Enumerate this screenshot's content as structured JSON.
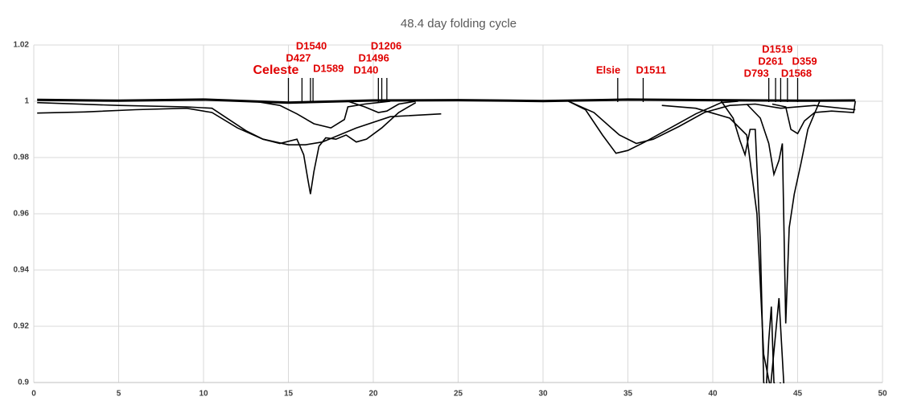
{
  "chart_data": {
    "type": "line",
    "title": "48.4 day folding cycle",
    "xlim": [
      0,
      50
    ],
    "xticks": [
      0,
      5,
      10,
      15,
      20,
      25,
      30,
      35,
      40,
      45,
      50
    ],
    "ylim": [
      0.9,
      1.02
    ],
    "yticks": [
      0.9,
      0.92,
      0.94,
      0.96,
      0.98,
      1,
      1.02
    ],
    "grid": true,
    "series": [
      {
        "color": "#000000",
        "x": [
          0.2,
          5,
          10,
          15,
          20,
          25,
          30,
          35,
          40,
          45,
          48.4
        ],
        "values": [
          1.0005,
          1.0002,
          1.0006,
          0.9995,
          1.0003,
          1.0004,
          1.0001,
          1.0006,
          1.0004,
          1.0002,
          1.0003
        ]
      },
      {
        "color": "#000000",
        "x": [
          0.2,
          3,
          6,
          9,
          10.5,
          12,
          13.5,
          15,
          16,
          17,
          19,
          21,
          24
        ],
        "values": [
          0.9958,
          0.9962,
          0.997,
          0.9975,
          0.996,
          0.9905,
          0.9865,
          0.9845,
          0.9845,
          0.9855,
          0.9905,
          0.9945,
          0.9955
        ]
      },
      {
        "color": "#000000",
        "x": [
          0.2,
          5,
          9,
          10.5,
          11.5,
          12.5,
          13.5,
          14.5,
          15.5,
          15.9,
          16.15,
          16.3,
          16.5,
          16.8,
          17.2,
          17.8,
          18.4,
          19,
          19.6,
          20.5,
          21.5,
          22.5
        ],
        "values": [
          0.9995,
          0.9985,
          0.998,
          0.9975,
          0.9935,
          0.9895,
          0.9865,
          0.985,
          0.9865,
          0.981,
          0.972,
          0.967,
          0.975,
          0.984,
          0.987,
          0.9865,
          0.988,
          0.9855,
          0.9865,
          0.9905,
          0.996,
          0.9995
        ]
      },
      {
        "color": "#000000",
        "x": [
          13,
          14.5,
          15.5,
          16.5,
          17.5,
          18.3,
          18.5,
          19.5,
          21
        ],
        "values": [
          1.0,
          0.9985,
          0.9955,
          0.992,
          0.9905,
          0.9935,
          0.998,
          0.999,
          1.0
        ]
      },
      {
        "color": "#000000",
        "x": [
          18.5,
          19.5,
          20.3,
          20.8,
          21.5,
          22.5
        ],
        "values": [
          1.0,
          0.998,
          0.996,
          0.9965,
          0.999,
          1.0
        ]
      },
      {
        "color": "#000000",
        "x": [
          31.5,
          32.5,
          33.5,
          34.3,
          35,
          36,
          37.5,
          39,
          40.5,
          41.5
        ],
        "values": [
          1.0,
          0.997,
          0.988,
          0.9815,
          0.9825,
          0.9855,
          0.9905,
          0.9955,
          0.9995,
          1.0
        ]
      },
      {
        "color": "#000000",
        "x": [
          31.5,
          33,
          34.5,
          35.5,
          36.5,
          38,
          39.5,
          41,
          42.5,
          44,
          46,
          48.4
        ],
        "values": [
          1.0,
          0.996,
          0.988,
          0.985,
          0.9865,
          0.991,
          0.996,
          0.9985,
          0.999,
          0.9975,
          0.9985,
          0.997
        ]
      },
      {
        "color": "#000000",
        "x": [
          40.5,
          41.2,
          41.6,
          41.9,
          42.2,
          42.5,
          42.8,
          43.0,
          43.15,
          43.3,
          43.45,
          43.6,
          43.8,
          44.0
        ],
        "values": [
          1.0,
          0.994,
          0.986,
          0.981,
          0.99,
          0.99,
          0.95,
          0.9,
          0.898,
          0.915,
          0.927,
          0.9,
          0.898,
          0.9
        ]
      },
      {
        "color": "#000000",
        "x": [
          42,
          42.8,
          43.3,
          43.6,
          43.9,
          44.1,
          44.3,
          44.5,
          44.8,
          45.2,
          45.6,
          46.3
        ],
        "values": [
          0.999,
          0.994,
          0.985,
          0.974,
          0.979,
          0.985,
          0.921,
          0.955,
          0.967,
          0.978,
          0.99,
          1.0
        ]
      },
      {
        "color": "#000000",
        "x": [
          37,
          39,
          41,
          42,
          42.6,
          43.0,
          43.4,
          43.9,
          44.2
        ],
        "values": [
          0.9985,
          0.9975,
          0.994,
          0.988,
          0.96,
          0.91,
          0.898,
          0.93,
          0.898
        ]
      },
      {
        "color": "#000000",
        "x": [
          43.5,
          44.3,
          44.6,
          45.0,
          45.4,
          46,
          47,
          48.3,
          48.4
        ],
        "values": [
          0.999,
          0.998,
          0.99,
          0.9885,
          0.993,
          0.996,
          0.9965,
          0.996,
          1.0
        ]
      }
    ],
    "annotations": [
      {
        "text": "Celeste",
        "x": 15.0
      },
      {
        "text": "D427",
        "x": 15.8
      },
      {
        "text": "D1540",
        "x": 16.3
      },
      {
        "text": "D1589",
        "x": 16.45
      },
      {
        "text": "D140",
        "x": 20.3
      },
      {
        "text": "D1496",
        "x": 20.5
      },
      {
        "text": "D1206",
        "x": 20.8
      },
      {
        "text": "Elsie",
        "x": 34.4
      },
      {
        "text": "D1511",
        "x": 35.9
      },
      {
        "text": "D793",
        "x": 43.3
      },
      {
        "text": "D1519",
        "x": 43.7
      },
      {
        "text": "D261",
        "x": 44.0
      },
      {
        "text": "D1568",
        "x": 44.4
      },
      {
        "text": "D359",
        "x": 45.0
      }
    ]
  }
}
